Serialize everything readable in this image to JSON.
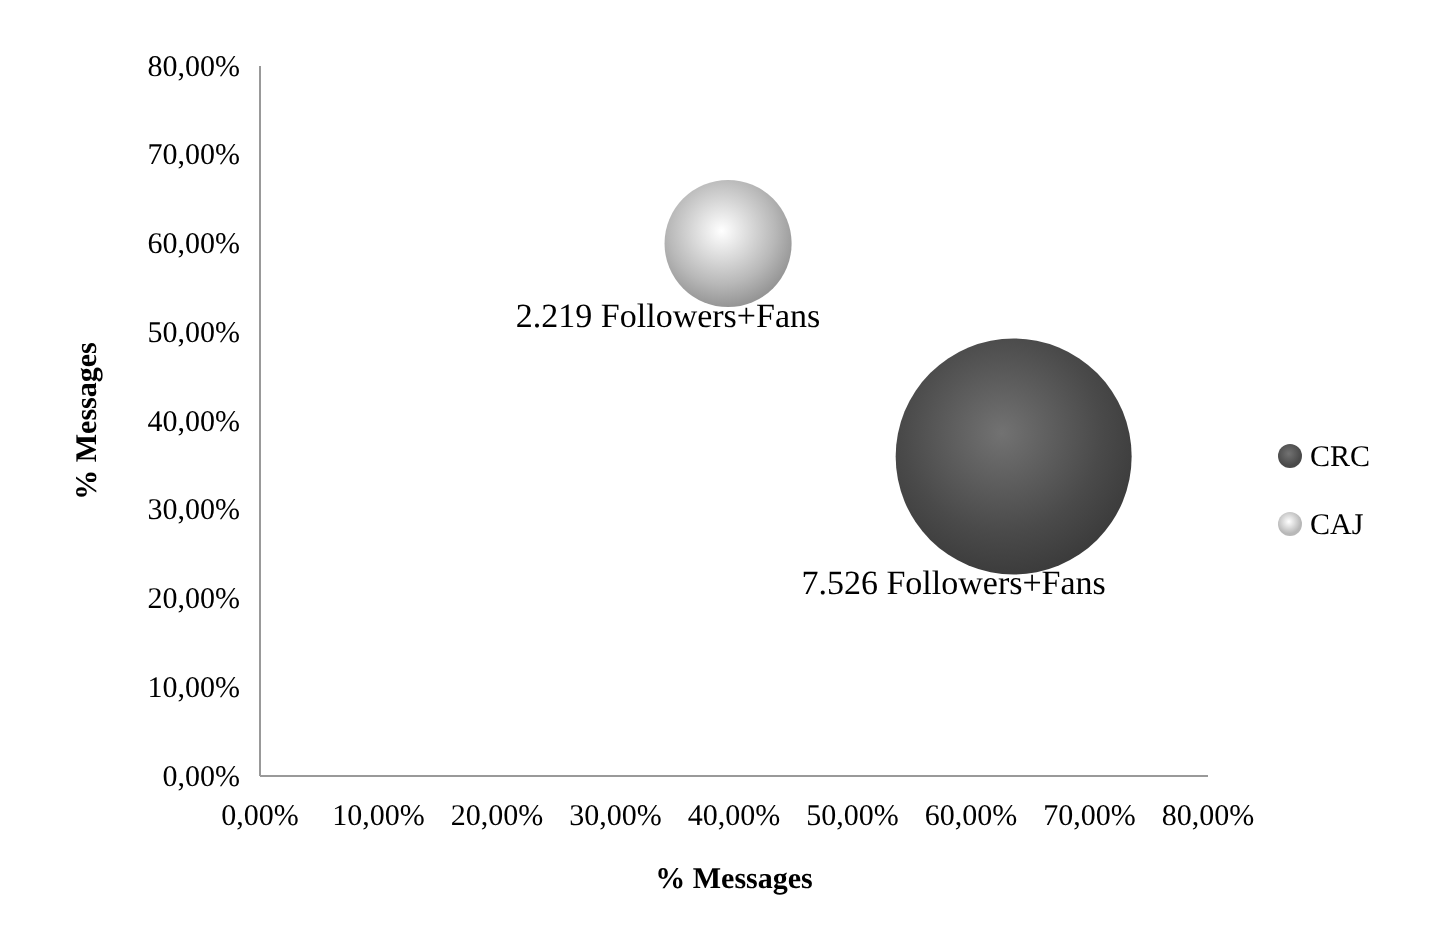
{
  "chart_data": {
    "type": "bubble",
    "xlabel": "%  Messages",
    "ylabel": "%  Messages",
    "xlim": [
      0,
      80
    ],
    "ylim": [
      0,
      80
    ],
    "xticks": [
      {
        "value": 0,
        "label": "0,00%"
      },
      {
        "value": 10,
        "label": "10,00%"
      },
      {
        "value": 20,
        "label": "20,00%"
      },
      {
        "value": 30,
        "label": "30,00%"
      },
      {
        "value": 40,
        "label": "40,00%"
      },
      {
        "value": 50,
        "label": "50,00%"
      },
      {
        "value": 60,
        "label": "60,00%"
      },
      {
        "value": 70,
        "label": "70,00%"
      },
      {
        "value": 80,
        "label": "80,00%"
      }
    ],
    "yticks": [
      {
        "value": 0,
        "label": "0,00%"
      },
      {
        "value": 10,
        "label": "10,00%"
      },
      {
        "value": 20,
        "label": "20,00%"
      },
      {
        "value": 30,
        "label": "30,00%"
      },
      {
        "value": 40,
        "label": "40,00%"
      },
      {
        "value": 50,
        "label": "50,00%"
      },
      {
        "value": 60,
        "label": "60,00%"
      },
      {
        "value": 70,
        "label": "70,00%"
      },
      {
        "value": 80,
        "label": "80,00%"
      }
    ],
    "series": [
      {
        "name": "CRC",
        "color": "#4a4a4a",
        "x": [
          63.6
        ],
        "values": [
          36
        ],
        "sizes": [
          1
        ]
      },
      {
        "name": "CAJ",
        "color": "#b8b8b8",
        "x": [
          39.5
        ],
        "values": [
          60
        ],
        "sizes": [
          0.29
        ]
      }
    ],
    "annotations": [
      "7.526 Followers+Fans",
      "2.219 Followers+Fans"
    ],
    "legend": "right",
    "grid": false
  }
}
